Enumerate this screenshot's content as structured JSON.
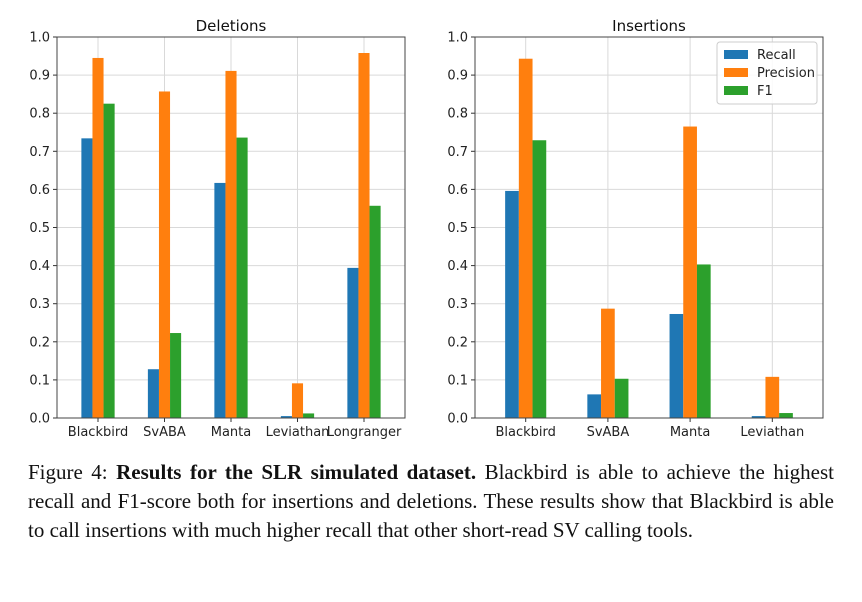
{
  "chart_data": [
    {
      "type": "bar",
      "title": "Deletions",
      "categories": [
        "Blackbird",
        "SvABA",
        "Manta",
        "Leviathan",
        "Longranger"
      ],
      "series": [
        {
          "name": "Recall",
          "color": "#1f77b4",
          "values": [
            0.734,
            0.128,
            0.617,
            0.005,
            0.394
          ]
        },
        {
          "name": "Precision",
          "color": "#ff7f0e",
          "values": [
            0.945,
            0.857,
            0.911,
            0.091,
            0.958
          ]
        },
        {
          "name": "F1",
          "color": "#2ca02c",
          "values": [
            0.825,
            0.223,
            0.736,
            0.012,
            0.557
          ]
        }
      ],
      "ylim": [
        0,
        1.0
      ],
      "yticks": [
        "0.0",
        "0.1",
        "0.2",
        "0.3",
        "0.4",
        "0.5",
        "0.6",
        "0.7",
        "0.8",
        "0.9",
        "1.0"
      ],
      "grid": true,
      "legend": "none"
    },
    {
      "type": "bar",
      "title": "Insertions",
      "categories": [
        "Blackbird",
        "SvABA",
        "Manta",
        "Leviathan"
      ],
      "series": [
        {
          "name": "Recall",
          "color": "#1f77b4",
          "values": [
            0.596,
            0.062,
            0.273,
            0.005
          ]
        },
        {
          "name": "Precision",
          "color": "#ff7f0e",
          "values": [
            0.943,
            0.287,
            0.765,
            0.108
          ]
        },
        {
          "name": "F1",
          "color": "#2ca02c",
          "values": [
            0.729,
            0.103,
            0.403,
            0.013
          ]
        }
      ],
      "ylim": [
        0,
        1.0
      ],
      "yticks": [
        "0.0",
        "0.1",
        "0.2",
        "0.3",
        "0.4",
        "0.5",
        "0.6",
        "0.7",
        "0.8",
        "0.9",
        "1.0"
      ],
      "grid": true,
      "legend": "top-right"
    }
  ],
  "caption": {
    "label": "Figure 4:",
    "bold": "Results for the SLR simulated dataset.",
    "text": "Blackbird is able to achieve the highest recall and F1-score both for insertions and deletions. These results show that Blackbird is able to call insertions with much higher recall that other short-read SV calling tools."
  }
}
